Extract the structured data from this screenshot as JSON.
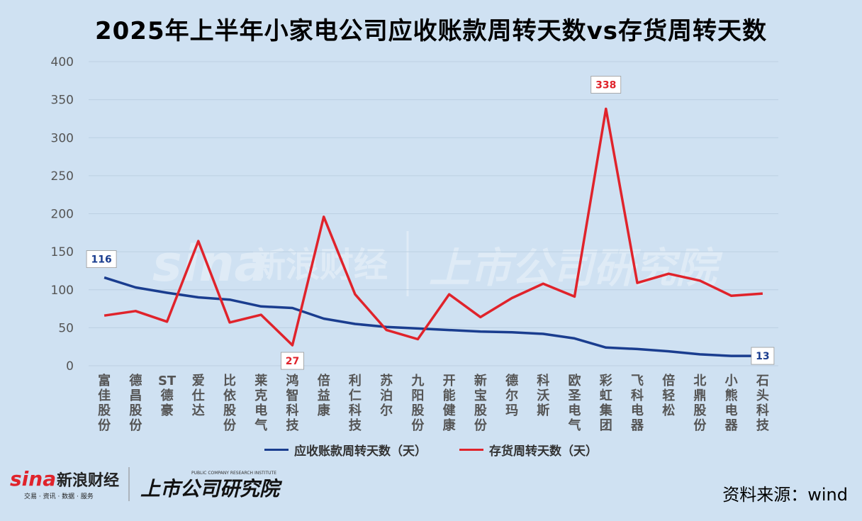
{
  "title": "2025年上半年小家电公司应收账款周转天数vs存货周转天数",
  "chart_data": {
    "type": "line",
    "title": "2025年上半年小家电公司应收账款周转天数vs存货周转天数",
    "categories": [
      "富佳股份",
      "德昌股份",
      "ST德豪",
      "爱仕达",
      "比依股份",
      "莱克电气",
      "鸿智科技",
      "倍益康",
      "利仁科技",
      "苏泊尔",
      "九阳股份",
      "开能健康",
      "新宝股份",
      "德尔玛",
      "科沃斯",
      "欧圣电气",
      "彩虹集团",
      "飞科电器",
      "倍轻松",
      "北鼎股份",
      "小熊电器",
      "石头科技"
    ],
    "ylim": [
      0,
      400
    ],
    "yticks": [
      "0",
      "50",
      "100",
      "150",
      "200",
      "250",
      "300",
      "350",
      "400"
    ],
    "grid": true,
    "legend_position": "bottom",
    "series": [
      {
        "name": "应收账款周转天数（天）",
        "color": "#1a3d8f",
        "values": [
          116,
          103,
          96,
          90,
          87,
          78,
          76,
          62,
          55,
          51,
          49,
          47,
          45,
          44,
          42,
          36,
          24,
          22,
          19,
          15,
          13,
          13
        ],
        "labels": [
          {
            "index": 0,
            "text": "116"
          },
          {
            "index": 21,
            "text": "13"
          }
        ]
      },
      {
        "name": "存货周转天数（天）",
        "color": "#e0232b",
        "values": [
          66,
          72,
          58,
          164,
          57,
          67,
          27,
          196,
          94,
          47,
          35,
          94,
          64,
          89,
          108,
          91,
          338,
          109,
          121,
          112,
          92,
          95
        ],
        "labels": [
          {
            "index": 6,
            "text": "27"
          },
          {
            "index": 16,
            "text": "338"
          }
        ]
      }
    ]
  },
  "legend": [
    {
      "label": "应收账款周转天数（天）",
      "color": "#1a3d8f"
    },
    {
      "label": "存货周转天数（天）",
      "color": "#e0232b"
    }
  ],
  "footer": {
    "brand_sina": "sina",
    "brand_cn": "新浪财经",
    "brand_tagline": "交易 · 资讯 · 数据 · 服务",
    "brand_research": "上市公司研究院",
    "brand_research_en": "PUBLIC COMPANY RESEARCH INSTITUTE"
  },
  "source": "资料来源：wind"
}
